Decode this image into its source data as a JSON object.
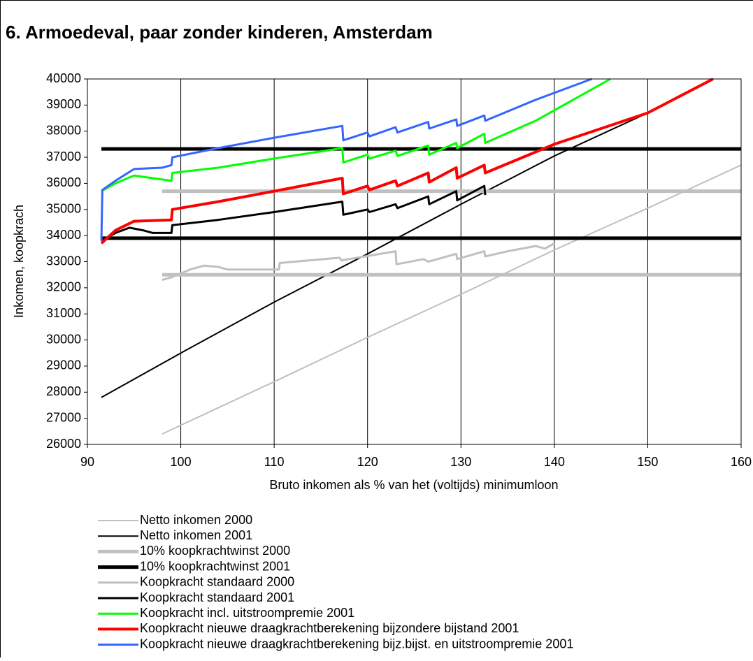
{
  "chart_data": {
    "type": "line",
    "title": "6. Armoedeval, paar zonder kinderen, Amsterdam",
    "xlabel": "Bruto inkomen als % van het (voltijds) minimumloon",
    "ylabel": "Inkomen, koopkrach",
    "xlim": [
      90,
      160
    ],
    "xticks": [
      90,
      100,
      110,
      120,
      130,
      140,
      150,
      160
    ],
    "ylim": [
      26000,
      40000
    ],
    "yticks": [
      26000,
      27000,
      28000,
      29000,
      30000,
      31000,
      32000,
      33000,
      34000,
      35000,
      36000,
      37000,
      38000,
      39000,
      40000
    ],
    "grid": "x",
    "legend": "bottom",
    "series": [
      {
        "name": "Netto inkomen 2000",
        "color": "#c0c0c0",
        "line_width": 2,
        "x": [
          98,
          110,
          120,
          130,
          140,
          150,
          160
        ],
        "values": [
          26400,
          28400,
          30100,
          31750,
          33450,
          35050,
          36700
        ]
      },
      {
        "name": "Netto inkomen 2001",
        "color": "#000000",
        "line_width": 2,
        "x": [
          91.5,
          100,
          110,
          120,
          130,
          140,
          150
        ],
        "values": [
          27800,
          29500,
          31450,
          33300,
          35200,
          37050,
          38700
        ]
      },
      {
        "name": "10% koopkrachtwinst 2000",
        "color": "#c0c0c0",
        "line_width": 5,
        "x": [
          98,
          160,
          160,
          98,
          160
        ],
        "values": [
          32500,
          32500,
          null,
          35700,
          35700
        ]
      },
      {
        "name": "10% koopkrachtwinst 2001",
        "color": "#000000",
        "line_width": 5,
        "x": [
          91.5,
          160,
          160,
          91.5,
          160
        ],
        "values": [
          33900,
          33900,
          null,
          37320,
          37320
        ]
      },
      {
        "name": "Koopkracht standaard 2000",
        "color": "#c0c0c0",
        "line_width": 3,
        "x": [
          98,
          99,
          101,
          102.5,
          104,
          105,
          110.5,
          110.6,
          117,
          117.2,
          123,
          123.1,
          126,
          126.5,
          129.5,
          129.6,
          132.5,
          132.6,
          135,
          138,
          139,
          140
        ],
        "values": [
          32300,
          32400,
          32700,
          32850,
          32800,
          32700,
          32700,
          32950,
          33150,
          33050,
          33400,
          32900,
          33100,
          33000,
          33300,
          33100,
          33400,
          33200,
          33400,
          33600,
          33500,
          33700
        ]
      },
      {
        "name": "Koopkracht standaard 2001",
        "color": "#000000",
        "line_width": 3,
        "x": [
          91.5,
          93,
          94.5,
          96,
          97,
          99,
          99.1,
          104,
          110,
          117.3,
          117.4,
          120,
          120.2,
          123,
          123.2,
          126.5,
          126.6,
          129.5,
          129.6,
          132.5,
          132.6
        ],
        "values": [
          33800,
          34100,
          34300,
          34200,
          34100,
          34100,
          34400,
          34600,
          34900,
          35300,
          34800,
          35000,
          34900,
          35200,
          35050,
          35500,
          35200,
          35700,
          35350,
          35900,
          35550
        ]
      },
      {
        "name": "Koopkracht incl. uitstroompremie 2001",
        "color": "#00ff00",
        "line_width": 3,
        "x": [
          91.5,
          93,
          95,
          97,
          99,
          99.1,
          104,
          110,
          117.3,
          117.4,
          120,
          120.2,
          123,
          123.2,
          126.5,
          126.6,
          129.5,
          129.6,
          132.5,
          132.6,
          138,
          142,
          146
        ],
        "values": [
          35700,
          36000,
          36300,
          36200,
          36100,
          36400,
          36600,
          36950,
          37350,
          36800,
          37100,
          36950,
          37250,
          37050,
          37450,
          37100,
          37550,
          37350,
          37900,
          37550,
          38400,
          39200,
          40000
        ]
      },
      {
        "name": "Koopkracht nieuwe draagkrachtberekening bijzondere bijstand 2001",
        "color": "#ff0000",
        "line_width": 4,
        "x": [
          91.5,
          93,
          95,
          99,
          99.1,
          104,
          110,
          117.3,
          117.4,
          120,
          120.2,
          123,
          123.2,
          126.5,
          126.6,
          129.5,
          129.6,
          132.5,
          132.6,
          140,
          150,
          157
        ],
        "values": [
          33700,
          34200,
          34550,
          34600,
          35000,
          35300,
          35700,
          36200,
          35600,
          35900,
          35750,
          36100,
          35900,
          36400,
          36050,
          36600,
          36200,
          36700,
          36400,
          37500,
          38700,
          40000
        ]
      },
      {
        "name": "Koopkracht nieuwe draagkrachtberekening bijz.bijst. en uitstroompremie 2001",
        "color": "#3366ff",
        "line_width": 3,
        "x": [
          91.5,
          91.6,
          93,
          95,
          98,
          99,
          99.1,
          104,
          110,
          117.3,
          117.4,
          120,
          120.2,
          123,
          123.2,
          126.5,
          126.6,
          129.5,
          129.6,
          132.5,
          132.6,
          138,
          144
        ],
        "values": [
          33800,
          35750,
          36100,
          36550,
          36600,
          36700,
          37000,
          37350,
          37750,
          38200,
          37650,
          37950,
          37800,
          38150,
          37950,
          38350,
          38100,
          38450,
          38200,
          38600,
          38400,
          39200,
          40000
        ]
      }
    ]
  }
}
